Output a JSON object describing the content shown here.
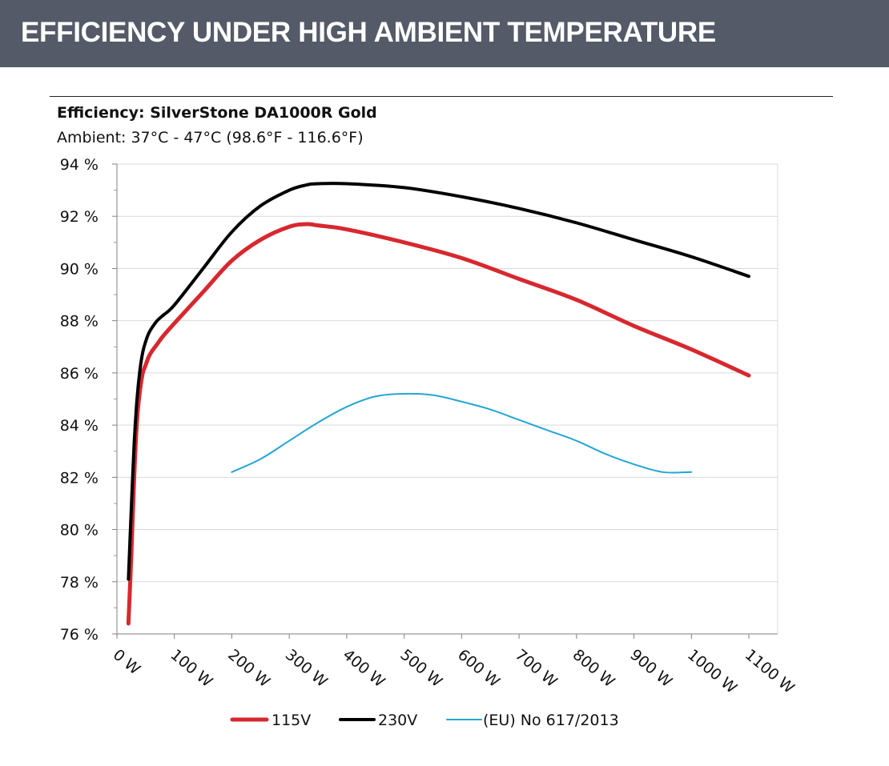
{
  "header": {
    "title": "EFFICIENCY UNDER HIGH AMBIENT TEMPERATURE"
  },
  "chart_data": {
    "type": "line",
    "title": "Efficiency: SilverStone DA1000R Gold",
    "subtitle": "Ambient: 37°C - 47°C (98.6°F - 116.6°F)",
    "xlabel": "",
    "ylabel": "",
    "xlim": [
      0,
      1100
    ],
    "ylim": [
      76,
      94
    ],
    "y_ticks": [
      76,
      78,
      80,
      82,
      84,
      86,
      88,
      90,
      92,
      94
    ],
    "y_tick_labels": [
      "76 %",
      "78 %",
      "80 %",
      "82 %",
      "84 %",
      "86 %",
      "88 %",
      "90 %",
      "92 %",
      "94 %"
    ],
    "x_ticks": [
      0,
      100,
      200,
      300,
      400,
      500,
      600,
      700,
      800,
      900,
      1000,
      1100
    ],
    "x_tick_labels": [
      "0 W",
      "100 W",
      "200 W",
      "300 W",
      "400 W",
      "500 W",
      "600 W",
      "700 W",
      "800 W",
      "900 W",
      "1000 W",
      "1100 W"
    ],
    "grid": true,
    "legend_position": "bottom",
    "series": [
      {
        "name": "115V",
        "color": "#d7282f",
        "x": [
          20,
          25,
          30,
          35,
          40,
          45,
          50,
          55,
          60,
          70,
          80,
          100,
          150,
          200,
          250,
          300,
          330,
          350,
          400,
          500,
          600,
          700,
          800,
          900,
          1000,
          1100
        ],
        "y": [
          76.4,
          79.0,
          82.0,
          84.2,
          85.3,
          86.0,
          86.3,
          86.6,
          86.8,
          87.1,
          87.4,
          87.9,
          89.1,
          90.3,
          91.1,
          91.6,
          91.7,
          91.65,
          91.5,
          91.0,
          90.4,
          89.6,
          88.8,
          87.8,
          86.9,
          85.9
        ]
      },
      {
        "name": "230V",
        "color": "#000000",
        "x": [
          20,
          25,
          30,
          35,
          40,
          45,
          50,
          55,
          60,
          70,
          80,
          100,
          150,
          200,
          250,
          300,
          330,
          350,
          400,
          500,
          600,
          700,
          800,
          900,
          1000,
          1100
        ],
        "y": [
          78.1,
          80.8,
          83.3,
          85.0,
          86.1,
          86.8,
          87.2,
          87.5,
          87.7,
          88.0,
          88.2,
          88.6,
          90.0,
          91.4,
          92.4,
          93.0,
          93.2,
          93.25,
          93.25,
          93.1,
          92.75,
          92.3,
          91.75,
          91.1,
          90.45,
          89.7
        ]
      },
      {
        "name": "(EU) No 617/2013",
        "color": "#23a6d5",
        "x": [
          200,
          250,
          300,
          350,
          400,
          450,
          500,
          550,
          600,
          650,
          700,
          750,
          800,
          850,
          900,
          950,
          1000
        ],
        "y": [
          82.2,
          82.7,
          83.4,
          84.1,
          84.7,
          85.1,
          85.2,
          85.15,
          84.9,
          84.6,
          84.2,
          83.8,
          83.4,
          82.9,
          82.5,
          82.2,
          82.2
        ]
      }
    ]
  }
}
